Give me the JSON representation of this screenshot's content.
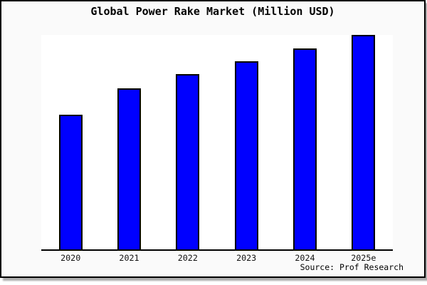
{
  "chart_data": {
    "type": "bar",
    "title": "Global Power Rake Market (Million USD)",
    "categories": [
      "2020",
      "2021",
      "2022",
      "2023",
      "2024",
      "2025e"
    ],
    "values": [
      62.7,
      75.0,
      81.7,
      87.7,
      93.7,
      100
    ],
    "values_note": "No numeric y-axis ticks are shown in the image; values are bar heights normalized to the tallest bar (2025e = 100)",
    "xlabel": "",
    "ylabel": "",
    "ylim": [
      0,
      100
    ],
    "grid": false,
    "legend": false,
    "y_axis_visible": false,
    "x_axis_line": true,
    "source": "Source: Prof Research"
  },
  "colors": {
    "bar_fill": "#0000ff",
    "bar_border": "#000000",
    "frame_background": "#fafafa",
    "plot_background": "#ffffff",
    "frame_border": "#000000",
    "shadow": "#a9a9a9",
    "text": "#000000"
  }
}
